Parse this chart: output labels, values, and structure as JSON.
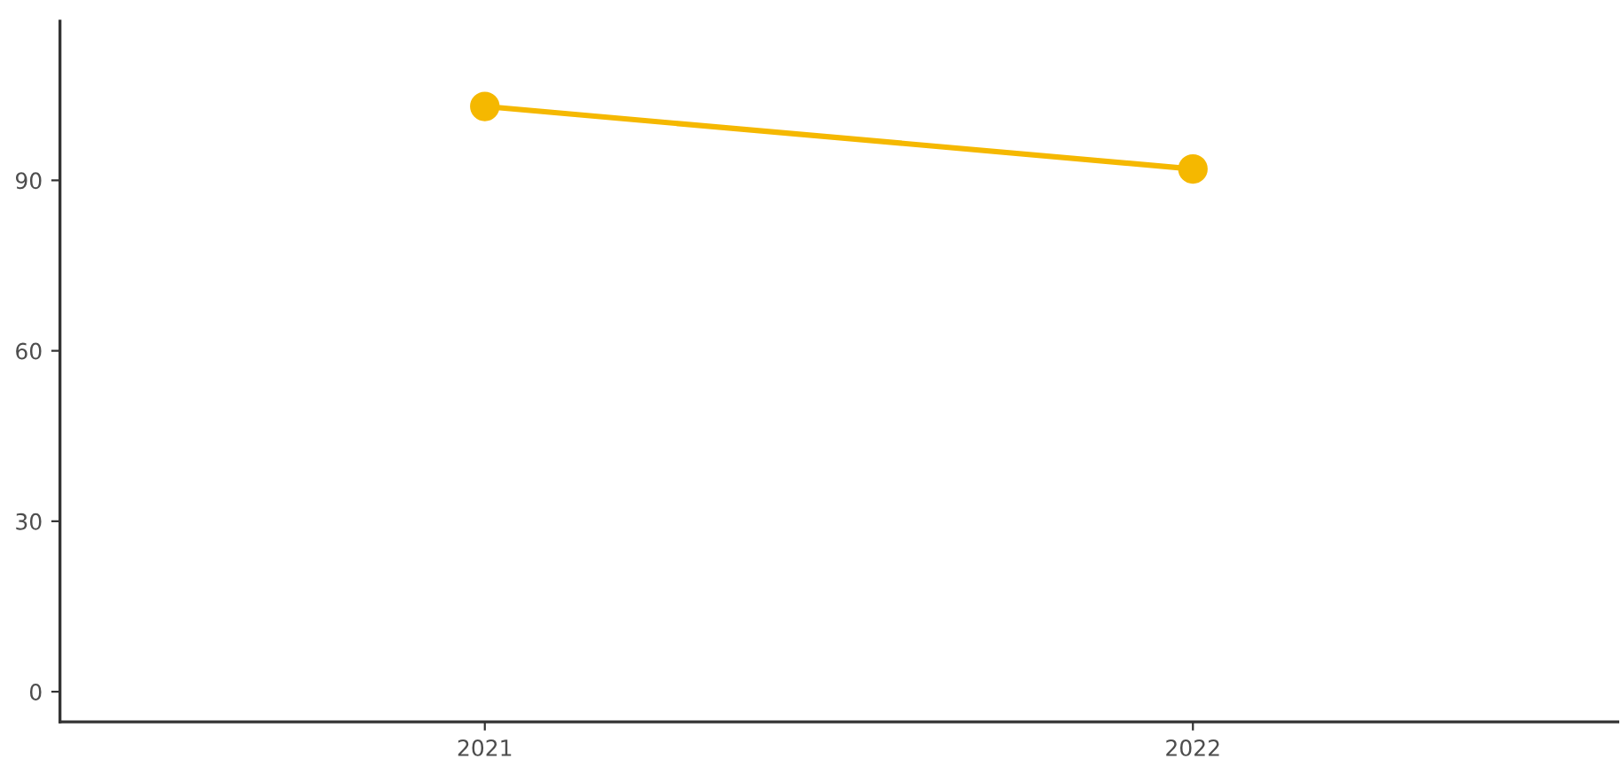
{
  "chart_data": {
    "type": "line",
    "categories": [
      "2021",
      "2022"
    ],
    "series": [
      {
        "color": "#f5b800",
        "values": [
          103,
          92
        ]
      }
    ],
    "ylim": [
      -5.3,
      118
    ],
    "yticks": [
      0,
      30,
      60,
      90
    ],
    "marker": "circle",
    "line_style": "solid"
  }
}
